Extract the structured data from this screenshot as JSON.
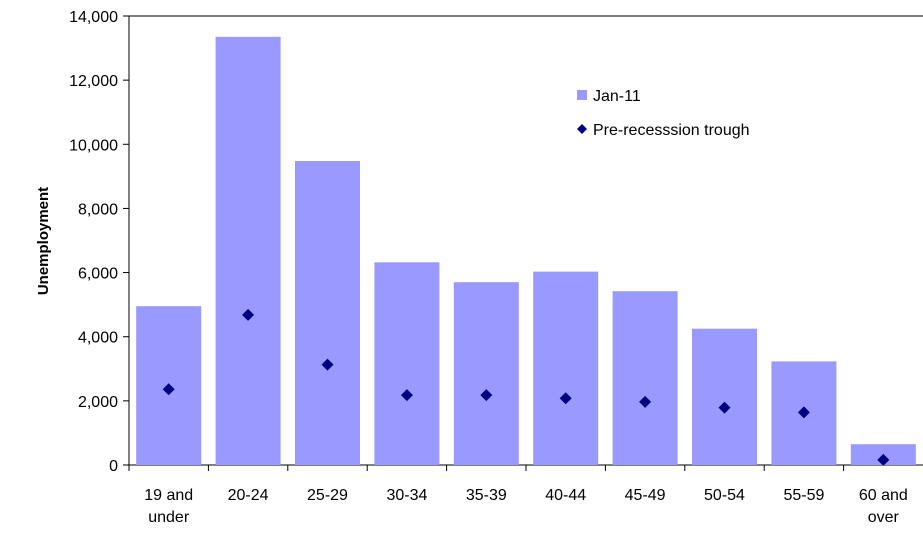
{
  "chart_data": {
    "type": "bar",
    "categories": [
      [
        "19 and",
        "under"
      ],
      [
        "20-24"
      ],
      [
        "25-29"
      ],
      [
        "30-34"
      ],
      [
        "35-39"
      ],
      [
        "40-44"
      ],
      [
        "45-49"
      ],
      [
        "50-54"
      ],
      [
        "55-59"
      ],
      [
        "60 and",
        "over"
      ]
    ],
    "series": [
      {
        "name": "Jan-11",
        "type": "bar",
        "color": "#9999FF",
        "values": [
          4950,
          13350,
          9480,
          6320,
          5700,
          6030,
          5420,
          4250,
          3230,
          650
        ]
      },
      {
        "name": "Pre-recesssion trough",
        "type": "scatter",
        "marker": "diamond",
        "color": "#000080",
        "values": [
          2360,
          4680,
          3130,
          2180,
          2180,
          2080,
          1970,
          1790,
          1640,
          160
        ]
      }
    ],
    "ylabel": "Unemployment",
    "xlabel": "",
    "ylim": [
      0,
      14000
    ],
    "yticks": [
      "0",
      "2,000",
      "4,000",
      "6,000",
      "8,000",
      "10,000",
      "12,000",
      "14,000"
    ],
    "grid": false,
    "legend_position": "top-right"
  }
}
